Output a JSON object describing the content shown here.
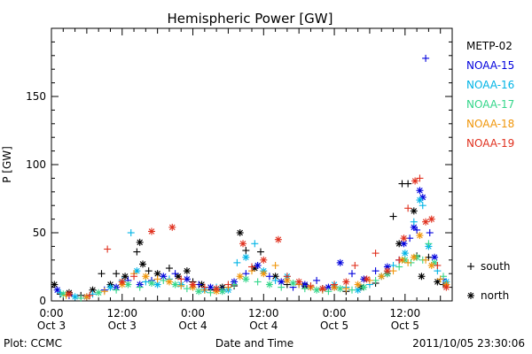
{
  "chart_data": {
    "type": "scatter",
    "title": "Hemispheric Power [GW]",
    "xlabel": "Date and Time",
    "ylabel": "P [GW]",
    "xlim_hours": [
      0,
      68
    ],
    "ylim": [
      0,
      200
    ],
    "x_ticks": [
      {
        "hour": 0,
        "line1": "0:00",
        "line2": "Oct 3"
      },
      {
        "hour": 12,
        "line1": "12:00",
        "line2": "Oct 3"
      },
      {
        "hour": 24,
        "line1": "0:00",
        "line2": "Oct 4"
      },
      {
        "hour": 36,
        "line1": "12:00",
        "line2": "Oct 4"
      },
      {
        "hour": 48,
        "line1": "0:00",
        "line2": "Oct 5"
      },
      {
        "hour": 60,
        "line1": "12:00",
        "line2": "Oct 5"
      }
    ],
    "y_ticks": [
      0,
      50,
      100,
      150
    ],
    "grid": false,
    "legend_placement": "right",
    "marker_legend": [
      {
        "symbol": "+",
        "label": "south"
      },
      {
        "symbol": "*",
        "label": "north"
      }
    ],
    "series": [
      {
        "name": "METP-02",
        "color": "#000000",
        "points": [
          [
            0.5,
            12,
            "*"
          ],
          [
            1.5,
            5,
            "+"
          ],
          [
            3,
            6,
            "*"
          ],
          [
            5,
            4,
            "+"
          ],
          [
            7,
            8,
            "*"
          ],
          [
            8.5,
            20,
            "+"
          ],
          [
            10,
            12,
            "*"
          ],
          [
            11,
            20,
            "+"
          ],
          [
            12.5,
            18,
            "*"
          ],
          [
            14.5,
            36,
            "+"
          ],
          [
            15,
            43,
            "*"
          ],
          [
            15.5,
            27,
            "*"
          ],
          [
            16.5,
            22,
            "+"
          ],
          [
            18,
            20,
            "*"
          ],
          [
            20,
            24,
            "+"
          ],
          [
            21.5,
            18,
            "*"
          ],
          [
            23,
            22,
            "*"
          ],
          [
            24,
            14,
            "+"
          ],
          [
            25.5,
            12,
            "*"
          ],
          [
            27,
            8,
            "+"
          ],
          [
            29,
            10,
            "*"
          ],
          [
            31,
            11,
            "+"
          ],
          [
            32,
            50,
            "*"
          ],
          [
            33,
            37,
            "+"
          ],
          [
            34.5,
            24,
            "*"
          ],
          [
            35.5,
            36,
            "+"
          ],
          [
            38,
            18,
            "*"
          ],
          [
            40,
            12,
            "+"
          ],
          [
            43,
            11,
            "*"
          ],
          [
            46,
            9,
            "+"
          ],
          [
            48,
            10,
            "*"
          ],
          [
            50,
            7,
            "+"
          ],
          [
            52.5,
            10,
            "*"
          ],
          [
            55,
            13,
            "+"
          ],
          [
            57,
            20,
            "*"
          ],
          [
            58,
            62,
            "+"
          ],
          [
            59,
            42,
            "*"
          ],
          [
            59.5,
            86,
            "+"
          ],
          [
            60.5,
            86,
            "+"
          ],
          [
            61.5,
            66,
            "*"
          ],
          [
            62,
            33,
            "+"
          ],
          [
            62.8,
            18,
            "*"
          ],
          [
            64,
            32,
            "+"
          ],
          [
            65.5,
            14,
            "*"
          ],
          [
            66.5,
            12,
            "+"
          ]
        ]
      },
      {
        "name": "NOAA-15",
        "color": "#0000dd",
        "points": [
          [
            1,
            8,
            "*"
          ],
          [
            3,
            4,
            "+"
          ],
          [
            6,
            3,
            "*"
          ],
          [
            9,
            8,
            "+"
          ],
          [
            11,
            10,
            "*"
          ],
          [
            13,
            15,
            "+"
          ],
          [
            15,
            12,
            "*"
          ],
          [
            17,
            15,
            "+"
          ],
          [
            19,
            18,
            "*"
          ],
          [
            21,
            20,
            "+"
          ],
          [
            23,
            16,
            "*"
          ],
          [
            25,
            12,
            "+"
          ],
          [
            27,
            10,
            "*"
          ],
          [
            29,
            8,
            "+"
          ],
          [
            31,
            14,
            "*"
          ],
          [
            33,
            20,
            "+"
          ],
          [
            35,
            26,
            "*"
          ],
          [
            37,
            18,
            "+"
          ],
          [
            39,
            14,
            "*"
          ],
          [
            41,
            10,
            "+"
          ],
          [
            43,
            12,
            "*"
          ],
          [
            45,
            15,
            "+"
          ],
          [
            47,
            10,
            "*"
          ],
          [
            49,
            28,
            "*"
          ],
          [
            51,
            20,
            "+"
          ],
          [
            53,
            16,
            "*"
          ],
          [
            55,
            22,
            "+"
          ],
          [
            57,
            25,
            "*"
          ],
          [
            59,
            30,
            "+"
          ],
          [
            59.8,
            42,
            "*"
          ],
          [
            60.8,
            46,
            "+"
          ],
          [
            61.5,
            54,
            "*"
          ],
          [
            62,
            52,
            "+"
          ],
          [
            62.5,
            81,
            "*"
          ],
          [
            63,
            76,
            "*"
          ],
          [
            63.5,
            178,
            "+"
          ],
          [
            64.2,
            50,
            "+"
          ],
          [
            65,
            32,
            "*"
          ],
          [
            66.5,
            16,
            "+"
          ]
        ]
      },
      {
        "name": "NOAA-16",
        "color": "#00b4e6",
        "points": [
          [
            1.5,
            6,
            "+"
          ],
          [
            4,
            3,
            "*"
          ],
          [
            7,
            5,
            "+"
          ],
          [
            10,
            10,
            "*"
          ],
          [
            12,
            15,
            "+"
          ],
          [
            13.5,
            50,
            "+"
          ],
          [
            14.5,
            22,
            "*"
          ],
          [
            16,
            14,
            "+"
          ],
          [
            18,
            12,
            "*"
          ],
          [
            20,
            16,
            "+"
          ],
          [
            22,
            12,
            "*"
          ],
          [
            24,
            10,
            "+"
          ],
          [
            26,
            8,
            "*"
          ],
          [
            28,
            10,
            "+"
          ],
          [
            30,
            8,
            "*"
          ],
          [
            31.5,
            28,
            "+"
          ],
          [
            33,
            32,
            "*"
          ],
          [
            34.5,
            42,
            "+"
          ],
          [
            36,
            22,
            "*"
          ],
          [
            38,
            15,
            "+"
          ],
          [
            40,
            18,
            "*"
          ],
          [
            42,
            12,
            "+"
          ],
          [
            44,
            10,
            "*"
          ],
          [
            46,
            8,
            "+"
          ],
          [
            48,
            12,
            "*"
          ],
          [
            50,
            10,
            "+"
          ],
          [
            52,
            8,
            "*"
          ],
          [
            54,
            12,
            "+"
          ],
          [
            56,
            18,
            "*"
          ],
          [
            58,
            26,
            "+"
          ],
          [
            60,
            35,
            "*"
          ],
          [
            61.5,
            58,
            "+"
          ],
          [
            62.5,
            74,
            "*"
          ],
          [
            63,
            70,
            "+"
          ],
          [
            64,
            40,
            "*"
          ],
          [
            65.5,
            22,
            "+"
          ],
          [
            67,
            14,
            "*"
          ]
        ]
      },
      {
        "name": "NOAA-17",
        "color": "#33d68a",
        "points": [
          [
            2,
            5,
            "*"
          ],
          [
            5,
            2,
            "+"
          ],
          [
            8,
            6,
            "*"
          ],
          [
            11,
            8,
            "+"
          ],
          [
            13,
            12,
            "*"
          ],
          [
            15,
            10,
            "+"
          ],
          [
            17,
            13,
            "*"
          ],
          [
            19,
            15,
            "+"
          ],
          [
            21,
            12,
            "*"
          ],
          [
            23,
            9,
            "+"
          ],
          [
            25,
            7,
            "*"
          ],
          [
            27,
            6,
            "+"
          ],
          [
            29,
            7,
            "*"
          ],
          [
            31,
            12,
            "+"
          ],
          [
            33,
            16,
            "*"
          ],
          [
            35,
            14,
            "+"
          ],
          [
            37,
            12,
            "*"
          ],
          [
            39,
            10,
            "+"
          ],
          [
            41,
            13,
            "*"
          ],
          [
            43,
            9,
            "+"
          ],
          [
            45,
            8,
            "*"
          ],
          [
            47,
            7,
            "+"
          ],
          [
            49,
            9,
            "*"
          ],
          [
            51,
            8,
            "+"
          ],
          [
            53,
            10,
            "*"
          ],
          [
            55,
            15,
            "+"
          ],
          [
            57,
            20,
            "*"
          ],
          [
            59,
            25,
            "+"
          ],
          [
            60,
            30,
            "*"
          ],
          [
            61,
            28,
            "+"
          ],
          [
            62,
            32,
            "*"
          ],
          [
            63,
            30,
            "+"
          ],
          [
            64,
            42,
            "+"
          ],
          [
            65,
            28,
            "*"
          ],
          [
            66.5,
            18,
            "+"
          ]
        ]
      },
      {
        "name": "NOAA-18",
        "color": "#f0960a",
        "points": [
          [
            2.5,
            4,
            "+"
          ],
          [
            6,
            3,
            "*"
          ],
          [
            9,
            7,
            "+"
          ],
          [
            12,
            12,
            "*"
          ],
          [
            14,
            20,
            "+"
          ],
          [
            16,
            18,
            "*"
          ],
          [
            18,
            16,
            "+"
          ],
          [
            20,
            14,
            "*"
          ],
          [
            22,
            11,
            "+"
          ],
          [
            24,
            10,
            "*"
          ],
          [
            26,
            8,
            "+"
          ],
          [
            28,
            7,
            "*"
          ],
          [
            30,
            10,
            "+"
          ],
          [
            32,
            18,
            "*"
          ],
          [
            34,
            22,
            "+"
          ],
          [
            36,
            20,
            "*"
          ],
          [
            38,
            26,
            "+"
          ],
          [
            40,
            15,
            "*"
          ],
          [
            42,
            12,
            "+"
          ],
          [
            44,
            10,
            "*"
          ],
          [
            46,
            8,
            "+"
          ],
          [
            48,
            10,
            "*"
          ],
          [
            50,
            9,
            "+"
          ],
          [
            52,
            12,
            "*"
          ],
          [
            54,
            15,
            "+"
          ],
          [
            56,
            18,
            "*"
          ],
          [
            58,
            22,
            "+"
          ],
          [
            59.5,
            30,
            "*"
          ],
          [
            60.5,
            28,
            "+"
          ],
          [
            61.5,
            32,
            "*"
          ],
          [
            62.5,
            48,
            "*"
          ],
          [
            63.5,
            30,
            "+"
          ],
          [
            64.5,
            26,
            "*"
          ],
          [
            66,
            16,
            "+"
          ],
          [
            67,
            12,
            "*"
          ]
        ]
      },
      {
        "name": "NOAA-19",
        "color": "#e0301e",
        "points": [
          [
            3,
            5,
            "*"
          ],
          [
            6.5,
            4,
            "+"
          ],
          [
            9.5,
            38,
            "+"
          ],
          [
            12,
            14,
            "*"
          ],
          [
            14,
            18,
            "+"
          ],
          [
            17,
            51,
            "*"
          ],
          [
            20.5,
            54,
            "*"
          ],
          [
            22,
            16,
            "+"
          ],
          [
            24,
            12,
            "*"
          ],
          [
            26,
            10,
            "+"
          ],
          [
            28,
            9,
            "*"
          ],
          [
            30,
            12,
            "+"
          ],
          [
            32.5,
            42,
            "*"
          ],
          [
            34,
            25,
            "+"
          ],
          [
            36,
            30,
            "*"
          ],
          [
            38.5,
            45,
            "*"
          ],
          [
            40,
            18,
            "+"
          ],
          [
            42,
            14,
            "*"
          ],
          [
            44,
            11,
            "+"
          ],
          [
            46,
            9,
            "*"
          ],
          [
            48,
            12,
            "+"
          ],
          [
            50,
            14,
            "*"
          ],
          [
            51.5,
            26,
            "+"
          ],
          [
            53.5,
            16,
            "*"
          ],
          [
            55,
            35,
            "+"
          ],
          [
            57,
            22,
            "*"
          ],
          [
            59,
            30,
            "+"
          ],
          [
            59.8,
            46,
            "*"
          ],
          [
            60.5,
            68,
            "+"
          ],
          [
            61.7,
            88,
            "*"
          ],
          [
            62.5,
            90,
            "+"
          ],
          [
            63.5,
            58,
            "*"
          ],
          [
            64.5,
            60,
            "*"
          ],
          [
            65.5,
            26,
            "+"
          ],
          [
            67,
            10,
            "*"
          ]
        ]
      }
    ]
  },
  "footer": {
    "left": "Plot: CCMC",
    "right": "2011/10/05 23:30:06"
  }
}
